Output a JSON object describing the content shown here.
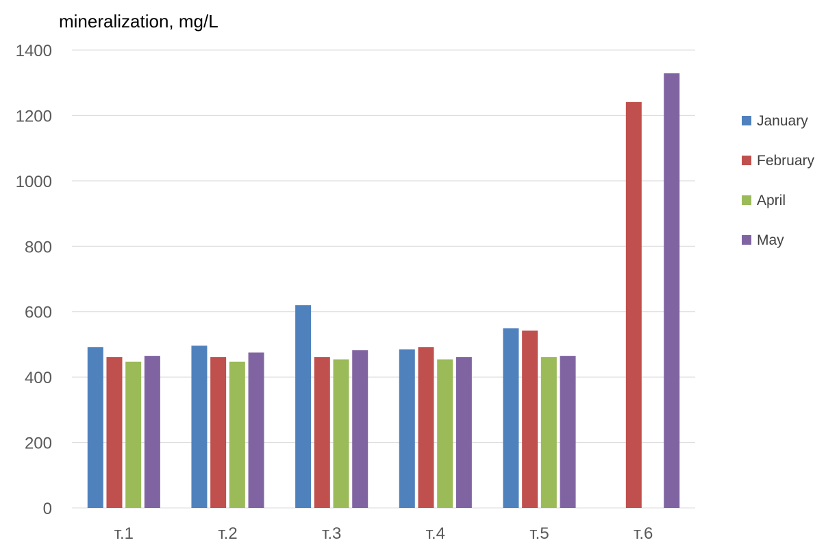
{
  "chart_data": {
    "type": "bar",
    "title": "",
    "xlabel": "",
    "ylabel": "mineralization, mg/L",
    "categories": [
      "т.1",
      "т.2",
      "т.3",
      "т.4",
      "т.5",
      "т.6"
    ],
    "series": [
      {
        "name": "January",
        "color": "#4F81BD",
        "values": [
          492,
          496,
          620,
          485,
          549,
          null
        ]
      },
      {
        "name": "February",
        "color": "#C0504D",
        "values": [
          461,
          461,
          461,
          492,
          542,
          1241
        ]
      },
      {
        "name": "April",
        "color": "#9BBB59",
        "values": [
          447,
          447,
          454,
          454,
          461,
          null
        ]
      },
      {
        "name": "May",
        "color": "#8064A2",
        "values": [
          465,
          475,
          482,
          461,
          465,
          1329
        ]
      }
    ],
    "ylim": [
      0,
      1400
    ],
    "yticks": [
      0,
      200,
      400,
      600,
      800,
      1000,
      1200,
      1400
    ],
    "grid": true,
    "legend_position": "right"
  }
}
